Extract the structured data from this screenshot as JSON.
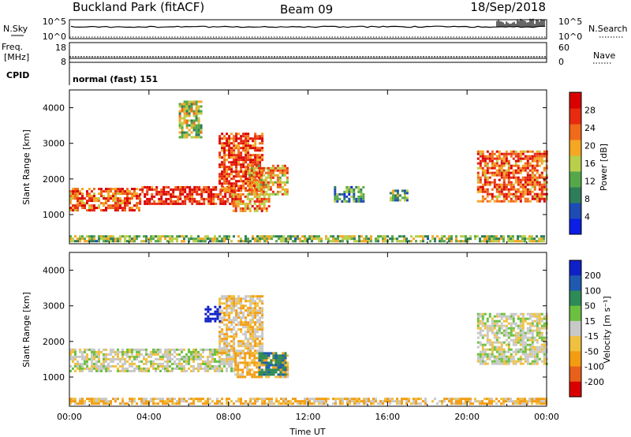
{
  "header": {
    "station": "Buckland Park (fitACF)",
    "beam": "Beam 09",
    "date": "18/Sep/2018"
  },
  "strip": {
    "nsky_label": "N.Sky",
    "nsky_ticks": [
      "10^5",
      "10^0"
    ],
    "nsearch_label": "N.Search",
    "nsearch_ticks": [
      "10^5",
      "10^0"
    ],
    "freq_label": "Freq.",
    "freq_unit": "[MHz]",
    "freq_ticks": [
      "18",
      "8"
    ],
    "nave_label": "Nave",
    "nave_ticks": [
      "60",
      "0"
    ],
    "cpid_label": "CPID",
    "cpid_value": "normal (fast) 151"
  },
  "colors": {
    "power_scale": [
      "#0a1ee6",
      "#1e4bb4",
      "#2e7d5a",
      "#55a84a",
      "#b8cf4a",
      "#f5a623",
      "#f06a1a",
      "#e82a10",
      "#d90000"
    ],
    "velocity_scale": [
      "#1020c8",
      "#1f5ab0",
      "#2e8b57",
      "#6cc040",
      "#c8c8c8",
      "#f0c040",
      "#f39c12",
      "#e8601a",
      "#d90000"
    ],
    "background": "#ffffff"
  },
  "chart_data": [
    {
      "type": "heatmap",
      "title": "",
      "xlabel": "",
      "ylabel": "Slant Range [km]",
      "xlim": [
        0,
        24
      ],
      "ylim": [
        180,
        4500
      ],
      "x_tick_labels": [
        "00:00",
        "04:00",
        "08:00",
        "12:00",
        "16:00",
        "20:00",
        "00:00"
      ],
      "y_ticks": [
        1000,
        2000,
        3000,
        4000
      ],
      "y_tick_labels": [
        "1000",
        "2000",
        "3000",
        "4000"
      ],
      "colorbar": {
        "label": "Power [dB]",
        "ticks": [
          4,
          8,
          12,
          16,
          20,
          24,
          28
        ],
        "tick_labels": [
          "4",
          "8",
          "12",
          "16",
          "20",
          "24",
          "28"
        ],
        "range": [
          0,
          32
        ]
      },
      "features": [
        {
          "t_start": 0.0,
          "t_end": 24.0,
          "range_km": [
            230,
            420
          ],
          "power_db": 14
        },
        {
          "t_start": 0.0,
          "t_end": 3.5,
          "range_km": [
            1150,
            1750
          ],
          "power_db": 24
        },
        {
          "t_start": 3.5,
          "t_end": 8.3,
          "range_km": [
            1300,
            1800
          ],
          "power_db": 28
        },
        {
          "t_start": 7.5,
          "t_end": 9.7,
          "range_km": [
            1700,
            3300
          ],
          "power_db": 26
        },
        {
          "t_start": 8.2,
          "t_end": 10.0,
          "range_km": [
            1100,
            1600
          ],
          "power_db": 22
        },
        {
          "t_start": 9.0,
          "t_end": 11.0,
          "range_km": [
            1600,
            2400
          ],
          "power_db": 20
        },
        {
          "t_start": 5.5,
          "t_end": 6.6,
          "range_km": [
            3200,
            4200
          ],
          "power_db": 16
        },
        {
          "t_start": 13.3,
          "t_end": 14.8,
          "range_km": [
            1400,
            1800
          ],
          "power_db": 10
        },
        {
          "t_start": 16.1,
          "t_end": 17.0,
          "range_km": [
            1400,
            1700
          ],
          "power_db": 12
        },
        {
          "t_start": 20.5,
          "t_end": 24.0,
          "range_km": [
            1400,
            2800
          ],
          "power_db": 24
        }
      ]
    },
    {
      "type": "heatmap",
      "title": "",
      "xlabel": "Time UT",
      "ylabel": "Slant Range [km]",
      "xlim": [
        0,
        24
      ],
      "ylim": [
        180,
        4500
      ],
      "x_tick_labels": [
        "00:00",
        "04:00",
        "08:00",
        "12:00",
        "16:00",
        "20:00",
        "00:00"
      ],
      "y_ticks": [
        1000,
        2000,
        3000,
        4000
      ],
      "y_tick_labels": [
        "1000",
        "2000",
        "3000",
        "4000"
      ],
      "colorbar": {
        "label": "Velocity [m s⁻¹]",
        "tick_labels": [
          "200",
          "100",
          "50",
          "15",
          "-15",
          "-50",
          "-100",
          "-200"
        ]
      },
      "features": [
        {
          "t_start": 0.0,
          "t_end": 24.0,
          "range_km": [
            230,
            420
          ],
          "velocity_ms": -30
        },
        {
          "t_start": 0.0,
          "t_end": 8.3,
          "range_km": [
            1150,
            1800
          ],
          "velocity_ms": 0
        },
        {
          "t_start": 7.5,
          "t_end": 9.7,
          "range_km": [
            1700,
            3300
          ],
          "velocity_ms": -20
        },
        {
          "t_start": 6.8,
          "t_end": 7.6,
          "range_km": [
            2600,
            3000
          ],
          "velocity_ms": 200
        },
        {
          "t_start": 8.3,
          "t_end": 11.0,
          "range_km": [
            1000,
            1700
          ],
          "velocity_ms": -40
        },
        {
          "t_start": 9.5,
          "t_end": 10.9,
          "range_km": [
            1100,
            1700
          ],
          "velocity_ms": 60
        },
        {
          "t_start": 20.5,
          "t_end": 24.0,
          "range_km": [
            1400,
            2800
          ],
          "velocity_ms": 0
        }
      ]
    }
  ]
}
